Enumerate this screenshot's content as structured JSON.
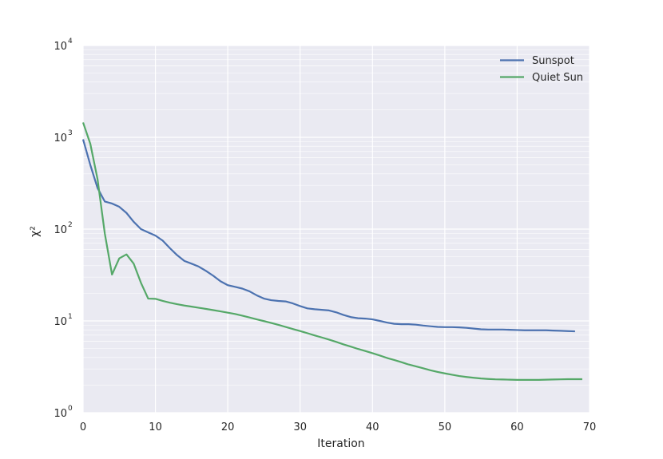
{
  "chart_data": {
    "type": "line",
    "xlabel": "Iteration",
    "ylabel": "χ²",
    "xlim": [
      0,
      70
    ],
    "ylim": [
      1,
      10000
    ],
    "yscale": "log",
    "xticks": [
      0,
      10,
      20,
      30,
      40,
      50,
      60,
      70
    ],
    "xtick_labels": [
      "0",
      "10",
      "20",
      "30",
      "40",
      "50",
      "60",
      "70"
    ],
    "yticks": [
      1,
      10,
      100,
      1000,
      10000
    ],
    "ytick_labels": [
      {
        "base": "10",
        "exp": "0"
      },
      {
        "base": "10",
        "exp": "1"
      },
      {
        "base": "10",
        "exp": "2"
      },
      {
        "base": "10",
        "exp": "3"
      },
      {
        "base": "10",
        "exp": "4"
      }
    ],
    "grid": true,
    "legend_position": "top-right",
    "series": [
      {
        "name": "Sunspot",
        "color": "#4c72b0",
        "x": [
          0,
          1,
          2,
          3,
          4,
          5,
          6,
          7,
          8,
          9,
          10,
          11,
          12,
          13,
          14,
          15,
          16,
          17,
          18,
          19,
          20,
          21,
          22,
          23,
          24,
          25,
          26,
          27,
          28,
          29,
          30,
          31,
          32,
          33,
          34,
          35,
          36,
          37,
          38,
          39,
          40,
          41,
          42,
          43,
          44,
          45,
          46,
          47,
          48,
          49,
          50,
          51,
          52,
          53,
          54,
          55,
          56,
          57,
          58,
          59,
          60,
          61,
          62,
          63,
          64,
          65,
          66,
          67,
          68
        ],
        "y": [
          950,
          500,
          280,
          200,
          190,
          175,
          150,
          120,
          100,
          92,
          85,
          75,
          62,
          52,
          45,
          42,
          39,
          35,
          31,
          27,
          24.5,
          23.5,
          22.5,
          21,
          19,
          17.5,
          16.8,
          16.5,
          16.3,
          15.5,
          14.5,
          13.7,
          13.4,
          13.2,
          13,
          12.4,
          11.6,
          11,
          10.7,
          10.6,
          10.4,
          10,
          9.6,
          9.3,
          9.2,
          9.2,
          9.1,
          8.9,
          8.75,
          8.6,
          8.55,
          8.55,
          8.5,
          8.4,
          8.25,
          8.1,
          8.05,
          8.05,
          8.05,
          8,
          7.95,
          7.9,
          7.9,
          7.9,
          7.9,
          7.85,
          7.8,
          7.75,
          7.7
        ]
      },
      {
        "name": "Quiet Sun",
        "color": "#55a868",
        "x": [
          0,
          1,
          2,
          3,
          4,
          5,
          6,
          7,
          8,
          9,
          10,
          11,
          12,
          13,
          14,
          15,
          16,
          17,
          18,
          19,
          20,
          21,
          22,
          23,
          24,
          25,
          26,
          27,
          28,
          29,
          30,
          31,
          32,
          33,
          34,
          35,
          36,
          37,
          38,
          39,
          40,
          41,
          42,
          43,
          44,
          45,
          46,
          47,
          48,
          49,
          50,
          51,
          52,
          53,
          54,
          55,
          56,
          57,
          58,
          59,
          60,
          61,
          62,
          63,
          64,
          65,
          66,
          67,
          68,
          69
        ],
        "y": [
          1450,
          850,
          350,
          90,
          32,
          48,
          53,
          42,
          26,
          17.5,
          17.4,
          16.5,
          15.8,
          15.2,
          14.7,
          14.3,
          13.9,
          13.5,
          13.1,
          12.7,
          12.3,
          11.9,
          11.4,
          10.9,
          10.4,
          9.95,
          9.5,
          9.05,
          8.6,
          8.15,
          7.75,
          7.35,
          6.95,
          6.6,
          6.25,
          5.9,
          5.55,
          5.25,
          4.95,
          4.7,
          4.45,
          4.2,
          3.95,
          3.75,
          3.55,
          3.35,
          3.2,
          3.05,
          2.9,
          2.78,
          2.68,
          2.59,
          2.51,
          2.45,
          2.4,
          2.36,
          2.33,
          2.31,
          2.3,
          2.29,
          2.28,
          2.28,
          2.28,
          2.28,
          2.29,
          2.3,
          2.31,
          2.32,
          2.32,
          2.32
        ]
      }
    ]
  }
}
